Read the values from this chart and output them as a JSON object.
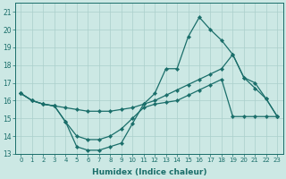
{
  "xlabel": "Humidex (Indice chaleur)",
  "bg_color": "#cce8e4",
  "grid_color": "#aacfcb",
  "line_color": "#1a6e6a",
  "xlim": [
    -0.5,
    23.5
  ],
  "ylim": [
    13,
    21.5
  ],
  "yticks": [
    13,
    14,
    15,
    16,
    17,
    18,
    19,
    20,
    21
  ],
  "xticks": [
    0,
    1,
    2,
    3,
    4,
    5,
    6,
    7,
    8,
    9,
    10,
    11,
    12,
    13,
    14,
    15,
    16,
    17,
    18,
    19,
    20,
    21,
    22,
    23
  ],
  "line_max_x": [
    0,
    1,
    2,
    3,
    4,
    5,
    6,
    7,
    8,
    9,
    10,
    11,
    12,
    13,
    14,
    15,
    16,
    17,
    18,
    19,
    20,
    21,
    22,
    23
  ],
  "line_max_y": [
    16.4,
    16.0,
    15.8,
    15.7,
    14.8,
    13.4,
    13.2,
    13.2,
    13.4,
    13.6,
    14.7,
    15.8,
    16.4,
    17.8,
    17.8,
    19.6,
    20.7,
    20.0,
    19.4,
    18.6,
    17.3,
    16.7,
    16.1,
    15.1
  ],
  "line_mid_x": [
    0,
    1,
    2,
    3,
    4,
    5,
    6,
    7,
    8,
    9,
    10,
    11,
    12,
    13,
    14,
    15,
    16,
    17,
    18,
    19,
    20,
    21,
    22,
    23
  ],
  "line_mid_y": [
    16.4,
    16.0,
    15.8,
    15.7,
    15.6,
    15.5,
    15.4,
    15.4,
    15.4,
    15.5,
    15.6,
    15.8,
    16.0,
    16.3,
    16.6,
    16.9,
    17.2,
    17.5,
    17.8,
    18.6,
    17.3,
    17.0,
    16.1,
    15.1
  ],
  "line_min_x": [
    0,
    1,
    2,
    3,
    4,
    5,
    6,
    7,
    8,
    9,
    10,
    11,
    12,
    13,
    14,
    15,
    16,
    17,
    18,
    19,
    20,
    21,
    22,
    23
  ],
  "line_min_y": [
    16.4,
    16.0,
    15.8,
    15.7,
    14.8,
    14.0,
    13.8,
    13.8,
    14.0,
    14.4,
    15.0,
    15.6,
    15.8,
    15.9,
    16.0,
    16.3,
    16.6,
    16.9,
    17.2,
    15.1,
    15.1,
    15.1,
    15.1,
    15.1
  ]
}
